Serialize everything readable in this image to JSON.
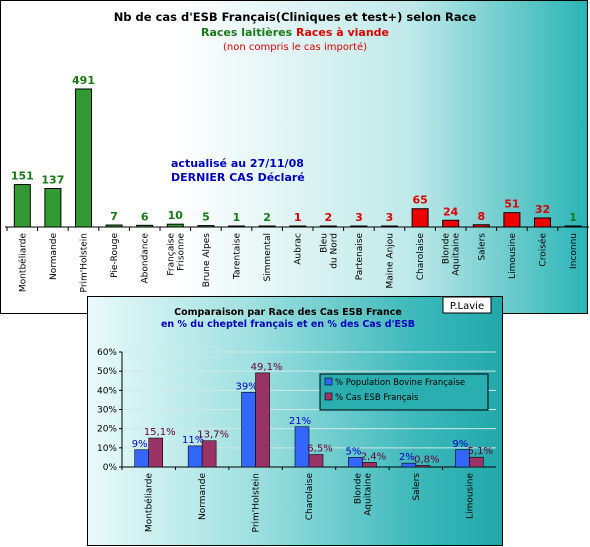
{
  "chart_data": [
    {
      "type": "bar",
      "title": "Nb de cas d'ESB Français(Cliniques et test+) selon Race",
      "subtitle_dairy": "Races laitières",
      "subtitle_meat": "Races à viande",
      "note": "(non compris le cas importé)",
      "annotation_line1": "actualisé au 27/11/08",
      "annotation_line2": "DERNIER CAS Déclaré",
      "categories": [
        "Montbéliarde",
        "Normande",
        "Prim'Holstein",
        "Pie-Rouge",
        "Abondance",
        "Française Frisonne",
        "Brune Alpes",
        "Tarentaise",
        "Simmental",
        "Aubrac",
        "Bleu du Nord",
        "Partenaise",
        "Maine Anjou",
        "Charolaise",
        "Blonde Aquitaine",
        "Salers",
        "Limousine",
        "Croisée",
        "Inconnu"
      ],
      "values": [
        151,
        137,
        491,
        7,
        6,
        10,
        5,
        1,
        2,
        1,
        2,
        3,
        3,
        65,
        24,
        8,
        51,
        32,
        1
      ],
      "groups": [
        "dairy",
        "dairy",
        "dairy",
        "dairy",
        "dairy",
        "dairy",
        "dairy",
        "dairy",
        "dairy",
        "meat",
        "meat",
        "meat",
        "meat",
        "meat",
        "meat",
        "meat",
        "meat",
        "meat",
        "unknown"
      ],
      "colors": {
        "dairy": "#339933",
        "meat": "#ee0000",
        "unknown": "#339933",
        "title": "#000000",
        "dairy_text": "#1a7a1a",
        "meat_text": "#dd0000",
        "annotation": "#0000bb"
      }
    },
    {
      "type": "bar",
      "title": "Comparaison par Race des Cas ESB France",
      "subtitle": "en % du cheptel français et en % des Cas d'ESB",
      "author_box": "P.Lavie",
      "categories": [
        "Montbéliarde",
        "Normande",
        "Prim'Holstein",
        "Charolaise",
        "Blonde Aquitaine",
        "Salers",
        "Limousine"
      ],
      "ylim": [
        0,
        60
      ],
      "yticks": [
        "0%",
        "10%",
        "20%",
        "30%",
        "40%",
        "50%",
        "60%"
      ],
      "series": [
        {
          "name": "% Population Bovine Française",
          "values": [
            9,
            11,
            39,
            21,
            5,
            2,
            9
          ],
          "labels": [
            "9%",
            "11%",
            "39%",
            "21%",
            "5%",
            "2%",
            "9%"
          ],
          "color": "#3366ff"
        },
        {
          "name": "% Cas ESB Français",
          "values": [
            15.1,
            13.7,
            49.1,
            6.5,
            2.4,
            0.8,
            5.1
          ],
          "labels": [
            "15,1%",
            "13,7%",
            "49,1%",
            "6,5%",
            "2,4%",
            "0,8%",
            "5,1%"
          ],
          "color": "#993366"
        }
      ]
    }
  ]
}
